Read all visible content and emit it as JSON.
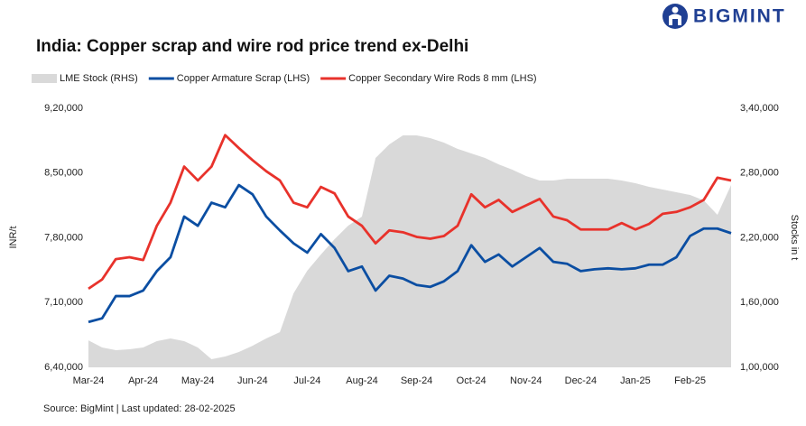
{
  "header": {
    "logo": "BIGMINT"
  },
  "chart_data": {
    "type": "line",
    "title": "India: Copper scrap and wire rod price trend ex-Delhi",
    "ylabel": "INR/t",
    "y2label": "Stocks in t",
    "source": "Source: BigMint | Last updated: 28-02-2025",
    "categories": [
      "Mar-24",
      null,
      null,
      null,
      "Apr-24",
      null,
      null,
      null,
      "May-24",
      null,
      null,
      null,
      "Jun-24",
      null,
      null,
      null,
      "Jul-24",
      null,
      null,
      null,
      "Aug-24",
      null,
      null,
      null,
      "Sep-24",
      null,
      null,
      null,
      "Oct-24",
      null,
      null,
      null,
      "Nov-24",
      null,
      null,
      null,
      "Dec-24",
      null,
      null,
      null,
      "Jan-25",
      null,
      null,
      null,
      "Feb-25",
      null,
      null,
      null
    ],
    "ylim": [
      640000,
      920000
    ],
    "yticks": [
      {
        "value": 640000,
        "label": "6,40,000"
      },
      {
        "value": 710000,
        "label": "7,10,000"
      },
      {
        "value": 780000,
        "label": "7,80,000"
      },
      {
        "value": 850000,
        "label": "8,50,000"
      },
      {
        "value": 920000,
        "label": "9,20,000"
      }
    ],
    "y2lim": [
      100000,
      340000
    ],
    "y2ticks": [
      {
        "value": 100000,
        "label": "1,00,000"
      },
      {
        "value": 160000,
        "label": "1,60,000"
      },
      {
        "value": 220000,
        "label": "2,20,000"
      },
      {
        "value": 280000,
        "label": "2,80,000"
      },
      {
        "value": 340000,
        "label": "3,40,000"
      }
    ],
    "series": [
      {
        "name": "LME Stock (RHS)",
        "color": "#d9d9d9",
        "type": "area",
        "axis": "y2",
        "values": [
          125000,
          118400,
          115900,
          116700,
          118400,
          124300,
          126800,
          124300,
          118400,
          107500,
          110000,
          114200,
          120000,
          126800,
          132600,
          168600,
          189500,
          204500,
          218700,
          231300,
          239600,
          294000,
          306500,
          314900,
          314900,
          312400,
          308200,
          302400,
          298200,
          294000,
          288100,
          283100,
          277300,
          273100,
          273100,
          274800,
          274800,
          274800,
          274800,
          273100,
          270600,
          267200,
          264700,
          262200,
          259700,
          254700,
          241300,
          268900
        ]
      },
      {
        "name": "Copper Armature Scrap (LHS)",
        "color": "#0b4ea2",
        "type": "line",
        "values": [
          689000,
          693000,
          717000,
          717000,
          723000,
          744000,
          759000,
          803000,
          793000,
          818000,
          813000,
          837000,
          827000,
          803000,
          788000,
          774000,
          764000,
          784000,
          769000,
          744000,
          749000,
          723000,
          739000,
          736000,
          729000,
          727000,
          733000,
          744000,
          772000,
          754000,
          762000,
          749000,
          759000,
          769000,
          754000,
          752000,
          744000,
          746000,
          747000,
          746000,
          747000,
          751000,
          751000,
          759000,
          782000,
          790000,
          790000,
          785000
        ]
      },
      {
        "name": "Copper Secondary Wire Rods 8 mm (LHS)",
        "color": "#e8322b",
        "type": "line",
        "values": [
          725000,
          735000,
          757000,
          759000,
          756000,
          793000,
          818000,
          857000,
          842000,
          857000,
          891000,
          877000,
          864000,
          852000,
          842000,
          818000,
          813000,
          835000,
          828000,
          803000,
          793000,
          774000,
          788000,
          786000,
          781000,
          779000,
          782000,
          793000,
          827000,
          813000,
          821000,
          808000,
          815000,
          822000,
          803000,
          799000,
          789000,
          789000,
          789000,
          796000,
          789000,
          795000,
          806000,
          808000,
          813000,
          821000,
          845000,
          842000
        ]
      }
    ]
  }
}
